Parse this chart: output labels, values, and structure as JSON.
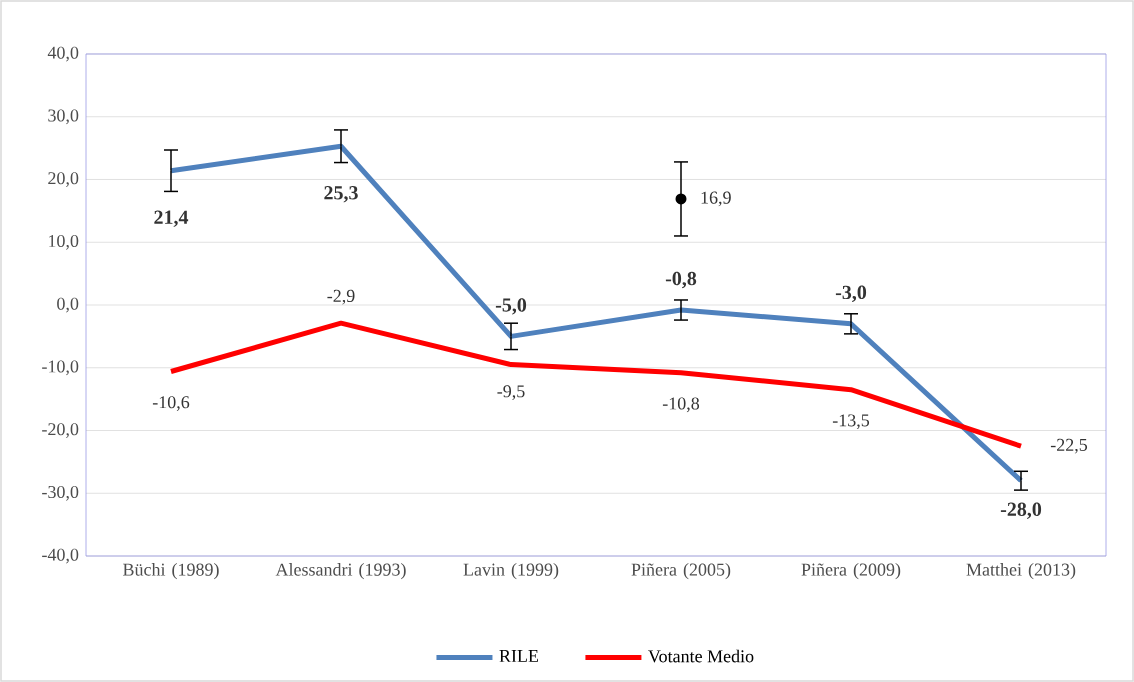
{
  "chart_data": {
    "type": "line",
    "categories": [
      "Büchi (1989)",
      "Alessandri (1993)",
      "Lavin (1999)",
      "Piñera (2005)",
      "Piñera (2009)",
      "Matthei (2013)"
    ],
    "ylim": [
      -40,
      40
    ],
    "yticks": [
      {
        "value": -40,
        "label": "-40,0"
      },
      {
        "value": -30,
        "label": "-30,0"
      },
      {
        "value": -20,
        "label": "-20,0"
      },
      {
        "value": -10,
        "label": "-10,0"
      },
      {
        "value": 0,
        "label": "0,0"
      },
      {
        "value": 10,
        "label": "10,0"
      },
      {
        "value": 20,
        "label": "20,0"
      },
      {
        "value": 30,
        "label": "30,0"
      },
      {
        "value": 40,
        "label": "40,0"
      }
    ],
    "grid": "y",
    "legend": "bottom",
    "marker": "none",
    "series": [
      {
        "name": "RILE",
        "color": "#4f81bd",
        "values": [
          21.4,
          25.3,
          -5.0,
          -0.8,
          -3.0,
          -28.0
        ],
        "errors": [
          3.3,
          2.6,
          2.1,
          1.6,
          1.6,
          1.5
        ],
        "value_labels": [
          "21,4",
          "25,3",
          "-5,0",
          "-0,8",
          "-3,0",
          "-28,0"
        ]
      },
      {
        "name": "Votante Medio",
        "color": "#ff0000",
        "values": [
          -10.6,
          -2.9,
          -9.5,
          -10.8,
          -13.5,
          -22.5
        ],
        "value_labels": [
          "-10,6",
          "-2,9",
          "-9,5",
          "-10,8",
          "-13,5",
          "-22,5"
        ]
      },
      {
        "color": "#000000",
        "marker": "circle",
        "values": [
          null,
          null,
          null,
          16.9,
          null,
          null
        ],
        "errors": [
          null,
          null,
          null,
          5.9,
          null,
          null
        ],
        "value_labels": [
          null,
          null,
          null,
          "16,9",
          null,
          null
        ]
      }
    ]
  }
}
